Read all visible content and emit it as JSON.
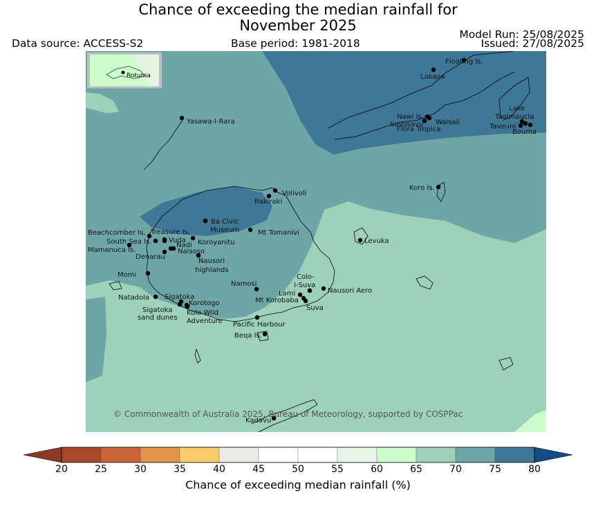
{
  "title_line1": "Chance of exceeding the median rainfall for",
  "title_line2": "November 2025",
  "data_source": "Data source: ACCESS-S2",
  "base_period": "Base period: 1981-2018",
  "model_run": "Model Run: 25/08/2025",
  "issued": "Issued: 27/08/2025",
  "copyright": "© Commonwealth of Australia 2025, Bureau of Meteorology, supported by COSPPac",
  "inset_label": "Rotuma",
  "places": [
    {
      "name": "Floating Is."
    },
    {
      "name": "Labasa"
    },
    {
      "name": "Nawi Is."
    },
    {
      "name": "Savusavu"
    },
    {
      "name": "Waisali"
    },
    {
      "name": "Flora Tropica"
    },
    {
      "name": "Lake"
    },
    {
      "name": "Tagimaucia"
    },
    {
      "name": "Taveuni"
    },
    {
      "name": "Bouma"
    },
    {
      "name": "Yasawa-I-Rara"
    },
    {
      "name": "Koro Is."
    },
    {
      "name": "Volivoli"
    },
    {
      "name": "Rakiraki"
    },
    {
      "name": "Ba Civic"
    },
    {
      "name": "Museum"
    },
    {
      "name": "Mt Tomanivi"
    },
    {
      "name": "Beachcomber Is."
    },
    {
      "name": "Treasure Is."
    },
    {
      "name": "South Sea Is."
    },
    {
      "name": "Vuda"
    },
    {
      "name": "Koroyanitu"
    },
    {
      "name": "Mamanuca Is."
    },
    {
      "name": "Nadi"
    },
    {
      "name": "Naisoso"
    },
    {
      "name": "Denarau"
    },
    {
      "name": "Levuka"
    },
    {
      "name": "Nausori"
    },
    {
      "name": "highlands"
    },
    {
      "name": "Momi"
    },
    {
      "name": "Namosi"
    },
    {
      "name": "Colo-"
    },
    {
      "name": "I-Suva"
    },
    {
      "name": "Nausori Aero"
    },
    {
      "name": "Lami"
    },
    {
      "name": "Mt Korobaba"
    },
    {
      "name": "Suva"
    },
    {
      "name": "Natadola"
    },
    {
      "name": "Sigatoka"
    },
    {
      "name": "Korotogo"
    },
    {
      "name": "Sigatoka"
    },
    {
      "name": "sand dunes"
    },
    {
      "name": "Kula Wild"
    },
    {
      "name": "Adventure"
    },
    {
      "name": "Pacific Harbour"
    },
    {
      "name": "Beqa Is."
    },
    {
      "name": "Kadavu"
    }
  ],
  "colorbar": {
    "title": "Chance of exceeding median rainfall (%)",
    "ticks": [
      "20",
      "25",
      "30",
      "35",
      "40",
      "45",
      "50",
      "55",
      "60",
      "65",
      "70",
      "75",
      "80"
    ],
    "colors": [
      "#a9482a",
      "#cb6437",
      "#e0954a",
      "#fdcc6a",
      "#eceae6",
      "#ffffff",
      "#ffffff",
      "#e8f5e8",
      "#ccfccc",
      "#9dd1b9",
      "#6ea6a7",
      "#3f7897"
    ],
    "under_color": "#8b3a26",
    "over_color": "#134d86"
  },
  "map_colors": {
    "c65_70": "#9dd1b9",
    "c70_75": "#6ea6a7",
    "c75_80": "#3f7897",
    "c60_65": "#ccfccc"
  }
}
